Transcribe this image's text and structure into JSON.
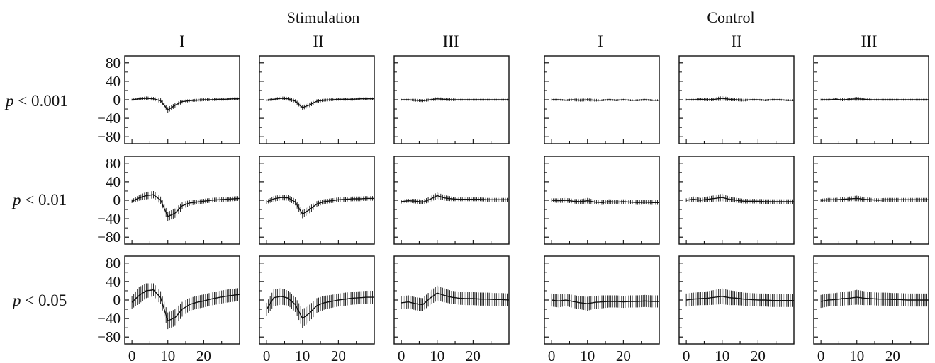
{
  "group_titles": [
    "Stimulation",
    "Control"
  ],
  "column_titles": [
    "I",
    "II",
    "III",
    "I",
    "II",
    "III"
  ],
  "row_labels": [
    {
      "p": "p",
      "rest": " < 0.001"
    },
    {
      "p": "p",
      "rest": " < 0.01"
    },
    {
      "p": "p",
      "rest": " < 0.05"
    }
  ],
  "y_tick_labels": [
    "80",
    "40",
    "0",
    "−40",
    "−80"
  ],
  "x_tick_labels": [
    "0",
    "10",
    "20"
  ],
  "colors": {
    "ink": "#111111",
    "background": "#ffffff"
  },
  "chart_data": {
    "type": "line",
    "description_units": "each panel shows a mean trace with vertical error bars",
    "xlim": [
      -2,
      30
    ],
    "ylim": [
      -95,
      95
    ],
    "x_ticks": [
      0,
      10,
      20
    ],
    "y_ticks": [
      80,
      40,
      0,
      -40,
      -80
    ],
    "grid": false,
    "panels": [
      {
        "row": 0,
        "col": 0,
        "x": [
          0,
          2,
          4,
          6,
          8,
          10,
          12,
          14,
          16,
          18,
          20,
          22,
          24,
          26,
          28,
          30
        ],
        "y": [
          0,
          2,
          3,
          2,
          -2,
          -22,
          -12,
          -4,
          -2,
          -1,
          0,
          0,
          1,
          1,
          2,
          2
        ],
        "err": [
          2,
          3,
          4,
          4,
          5,
          6,
          5,
          4,
          3,
          3,
          3,
          3,
          3,
          3,
          3,
          3
        ]
      },
      {
        "row": 0,
        "col": 1,
        "x": [
          0,
          2,
          4,
          6,
          8,
          10,
          12,
          14,
          16,
          18,
          20,
          22,
          24,
          26,
          28,
          30
        ],
        "y": [
          -1,
          1,
          3,
          2,
          -3,
          -17,
          -11,
          -3,
          -1,
          0,
          1,
          1,
          1,
          2,
          2,
          2
        ],
        "err": [
          2,
          3,
          4,
          4,
          4,
          5,
          5,
          4,
          3,
          3,
          3,
          3,
          3,
          3,
          3,
          3
        ]
      },
      {
        "row": 0,
        "col": 2,
        "x": [
          0,
          2,
          4,
          6,
          8,
          10,
          12,
          14,
          16,
          18,
          20,
          22,
          24,
          26,
          28,
          30
        ],
        "y": [
          0,
          0,
          -1,
          -2,
          0,
          2,
          1,
          0,
          0,
          0,
          0,
          0,
          0,
          0,
          0,
          0
        ],
        "err": [
          2,
          2,
          3,
          3,
          3,
          4,
          3,
          3,
          2,
          2,
          2,
          2,
          2,
          2,
          2,
          2
        ]
      },
      {
        "row": 0,
        "col": 3,
        "x": [
          0,
          2,
          4,
          6,
          8,
          10,
          12,
          14,
          16,
          18,
          20,
          22,
          24,
          26,
          28,
          30
        ],
        "y": [
          0,
          0,
          -1,
          0,
          -1,
          0,
          -1,
          -1,
          0,
          -1,
          0,
          -1,
          -1,
          0,
          -1,
          -1
        ],
        "err": [
          2,
          2,
          2,
          3,
          3,
          3,
          3,
          2,
          2,
          2,
          2,
          2,
          2,
          2,
          2,
          2
        ]
      },
      {
        "row": 0,
        "col": 4,
        "x": [
          0,
          2,
          4,
          6,
          8,
          10,
          12,
          14,
          16,
          18,
          20,
          22,
          24,
          26,
          28,
          30
        ],
        "y": [
          0,
          0,
          1,
          0,
          1,
          3,
          1,
          0,
          -1,
          0,
          0,
          -1,
          0,
          0,
          -1,
          -1
        ],
        "err": [
          2,
          2,
          3,
          3,
          4,
          5,
          4,
          3,
          3,
          2,
          2,
          2,
          2,
          2,
          2,
          2
        ]
      },
      {
        "row": 0,
        "col": 5,
        "x": [
          0,
          2,
          4,
          6,
          8,
          10,
          12,
          14,
          16,
          18,
          20,
          22,
          24,
          26,
          28,
          30
        ],
        "y": [
          0,
          0,
          1,
          0,
          1,
          2,
          1,
          0,
          0,
          0,
          0,
          0,
          0,
          0,
          0,
          0
        ],
        "err": [
          2,
          2,
          2,
          3,
          3,
          4,
          3,
          2,
          2,
          2,
          2,
          2,
          2,
          2,
          2,
          2
        ]
      },
      {
        "row": 1,
        "col": 0,
        "x": [
          0,
          2,
          4,
          6,
          8,
          10,
          12,
          14,
          16,
          18,
          20,
          22,
          24,
          26,
          28,
          30
        ],
        "y": [
          -2,
          5,
          10,
          12,
          0,
          -35,
          -28,
          -12,
          -6,
          -4,
          -2,
          0,
          1,
          2,
          3,
          4
        ],
        "err": [
          4,
          6,
          8,
          8,
          8,
          10,
          10,
          8,
          6,
          5,
          5,
          5,
          5,
          5,
          5,
          5
        ]
      },
      {
        "row": 1,
        "col": 1,
        "x": [
          0,
          2,
          4,
          6,
          8,
          10,
          12,
          14,
          16,
          18,
          20,
          22,
          24,
          26,
          28,
          30
        ],
        "y": [
          -4,
          3,
          6,
          5,
          -4,
          -30,
          -20,
          -8,
          -3,
          -1,
          1,
          2,
          3,
          3,
          4,
          4
        ],
        "err": [
          4,
          6,
          6,
          6,
          7,
          9,
          8,
          6,
          5,
          5,
          5,
          5,
          5,
          5,
          5,
          5
        ]
      },
      {
        "row": 1,
        "col": 2,
        "x": [
          0,
          2,
          4,
          6,
          8,
          10,
          12,
          14,
          16,
          18,
          20,
          22,
          24,
          26,
          28,
          30
        ],
        "y": [
          -3,
          -1,
          -2,
          -4,
          2,
          10,
          5,
          3,
          2,
          2,
          2,
          2,
          1,
          1,
          1,
          1
        ],
        "err": [
          4,
          4,
          5,
          5,
          6,
          7,
          6,
          5,
          4,
          4,
          4,
          4,
          4,
          4,
          4,
          4
        ]
      },
      {
        "row": 1,
        "col": 3,
        "x": [
          0,
          2,
          4,
          6,
          8,
          10,
          12,
          14,
          16,
          18,
          20,
          22,
          24,
          26,
          28,
          30
        ],
        "y": [
          0,
          -1,
          0,
          -2,
          -3,
          -1,
          -4,
          -5,
          -3,
          -4,
          -3,
          -4,
          -5,
          -4,
          -5,
          -5
        ],
        "err": [
          4,
          5,
          5,
          5,
          5,
          6,
          5,
          5,
          5,
          5,
          5,
          5,
          5,
          5,
          5,
          5
        ]
      },
      {
        "row": 1,
        "col": 4,
        "x": [
          0,
          2,
          4,
          6,
          8,
          10,
          12,
          14,
          16,
          18,
          20,
          22,
          24,
          26,
          28,
          30
        ],
        "y": [
          0,
          2,
          0,
          2,
          4,
          6,
          2,
          0,
          -2,
          -2,
          -2,
          -3,
          -3,
          -3,
          -3,
          -3
        ],
        "err": [
          4,
          6,
          5,
          6,
          7,
          8,
          6,
          5,
          5,
          5,
          5,
          5,
          5,
          5,
          5,
          5
        ]
      },
      {
        "row": 1,
        "col": 5,
        "x": [
          0,
          2,
          4,
          6,
          8,
          10,
          12,
          14,
          16,
          18,
          20,
          22,
          24,
          26,
          28,
          30
        ],
        "y": [
          0,
          1,
          1,
          2,
          3,
          4,
          2,
          1,
          0,
          1,
          1,
          1,
          1,
          1,
          1,
          1
        ],
        "err": [
          3,
          4,
          4,
          5,
          5,
          6,
          5,
          4,
          4,
          4,
          4,
          4,
          4,
          4,
          4,
          4
        ]
      },
      {
        "row": 2,
        "col": 0,
        "x": [
          0,
          2,
          4,
          6,
          8,
          10,
          12,
          14,
          16,
          18,
          20,
          22,
          24,
          26,
          28,
          30
        ],
        "y": [
          -5,
          10,
          20,
          22,
          5,
          -45,
          -38,
          -20,
          -10,
          -5,
          -2,
          2,
          5,
          8,
          10,
          12
        ],
        "err": [
          14,
          18,
          16,
          14,
          14,
          18,
          18,
          16,
          14,
          14,
          14,
          14,
          14,
          14,
          14,
          14
        ]
      },
      {
        "row": 2,
        "col": 1,
        "x": [
          0,
          2,
          4,
          6,
          8,
          10,
          12,
          14,
          16,
          18,
          20,
          22,
          24,
          26,
          28,
          30
        ],
        "y": [
          -20,
          5,
          8,
          4,
          -10,
          -40,
          -28,
          -12,
          -6,
          -3,
          0,
          2,
          4,
          5,
          6,
          6
        ],
        "err": [
          14,
          18,
          18,
          16,
          16,
          20,
          18,
          16,
          15,
          14,
          14,
          14,
          14,
          14,
          14,
          14
        ]
      },
      {
        "row": 2,
        "col": 2,
        "x": [
          0,
          2,
          4,
          6,
          8,
          10,
          12,
          14,
          16,
          18,
          20,
          22,
          24,
          26,
          28,
          30
        ],
        "y": [
          -6,
          -4,
          -8,
          -10,
          4,
          15,
          10,
          6,
          4,
          3,
          3,
          2,
          2,
          1,
          1,
          0
        ],
        "err": [
          14,
          14,
          14,
          14,
          15,
          16,
          15,
          14,
          14,
          14,
          14,
          14,
          14,
          14,
          14,
          14
        ]
      },
      {
        "row": 2,
        "col": 3,
        "x": [
          0,
          2,
          4,
          6,
          8,
          10,
          12,
          14,
          16,
          18,
          20,
          22,
          24,
          26,
          28,
          30
        ],
        "y": [
          0,
          -2,
          0,
          -3,
          -6,
          -8,
          -5,
          -4,
          -3,
          -3,
          -4,
          -3,
          -3,
          -2,
          -3,
          -3
        ],
        "err": [
          14,
          14,
          13,
          14,
          14,
          15,
          14,
          14,
          13,
          13,
          13,
          13,
          13,
          13,
          13,
          13
        ]
      },
      {
        "row": 2,
        "col": 4,
        "x": [
          0,
          2,
          4,
          6,
          8,
          10,
          12,
          14,
          16,
          18,
          20,
          22,
          24,
          26,
          28,
          30
        ],
        "y": [
          0,
          2,
          3,
          4,
          6,
          8,
          5,
          4,
          2,
          1,
          0,
          0,
          -1,
          -1,
          -1,
          -1
        ],
        "err": [
          14,
          14,
          14,
          15,
          16,
          17,
          16,
          15,
          14,
          14,
          14,
          14,
          14,
          14,
          14,
          14
        ]
      },
      {
        "row": 2,
        "col": 5,
        "x": [
          0,
          2,
          4,
          6,
          8,
          10,
          12,
          14,
          16,
          18,
          20,
          22,
          24,
          26,
          28,
          30
        ],
        "y": [
          -3,
          0,
          1,
          3,
          4,
          6,
          4,
          3,
          2,
          2,
          1,
          1,
          0,
          0,
          0,
          0
        ],
        "err": [
          14,
          14,
          14,
          15,
          15,
          16,
          15,
          14,
          14,
          14,
          14,
          14,
          14,
          14,
          14,
          14
        ]
      }
    ]
  }
}
